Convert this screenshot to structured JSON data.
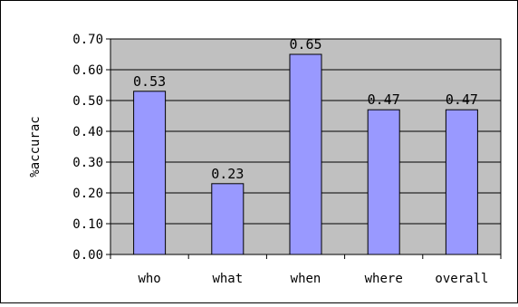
{
  "chart_data": {
    "type": "bar",
    "categories": [
      "who",
      "what",
      "when",
      "where",
      "overall"
    ],
    "values": [
      0.53,
      0.23,
      0.65,
      0.47,
      0.47
    ],
    "data_labels": [
      "0.53",
      "0.23",
      "0.65",
      "0.47",
      "0.47"
    ],
    "ylabel": "%accurac",
    "xlabel": "",
    "ylim": [
      0,
      0.7
    ],
    "yticks": [
      0.0,
      0.1,
      0.2,
      0.3,
      0.4,
      0.5,
      0.6,
      0.7
    ],
    "ytick_labels": [
      "0.00",
      "0.10",
      "0.20",
      "0.30",
      "0.40",
      "0.50",
      "0.60",
      "0.70"
    ],
    "grid": true,
    "plot_background": "#c0c0c0",
    "bar_color": "#9999ff",
    "bar_edge_color": "#000000"
  }
}
